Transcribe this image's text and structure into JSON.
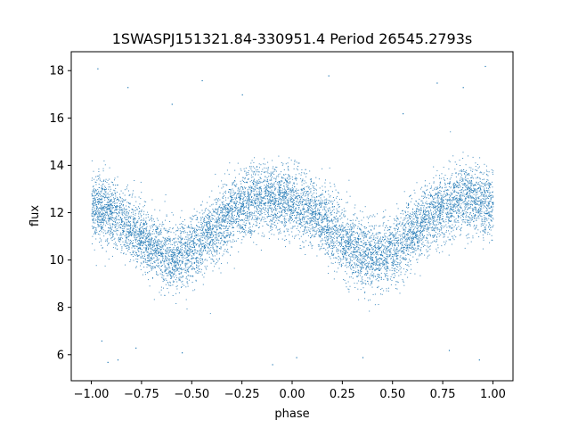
{
  "chart_data": {
    "type": "scatter",
    "title": "1SWASPJ151321.84-330951.4 Period 26545.2793s",
    "xlabel": "phase",
    "ylabel": "flux",
    "xlim": [
      -1.1,
      1.1
    ],
    "ylim": [
      4.9,
      18.8
    ],
    "xticks": [
      -1.0,
      -0.75,
      -0.5,
      -0.25,
      0.0,
      0.25,
      0.5,
      0.75,
      1.0
    ],
    "xtick_labels": [
      "−1.00",
      "−0.75",
      "−0.50",
      "−0.25",
      "0.00",
      "0.25",
      "0.50",
      "0.75",
      "1.00"
    ],
    "yticks": [
      6,
      8,
      10,
      12,
      14,
      16,
      18
    ],
    "ytick_labels": [
      "6",
      "8",
      "10",
      "12",
      "14",
      "16",
      "18"
    ],
    "grid": false,
    "legend": "none",
    "point_color": "#1f77b4",
    "series": [
      {
        "phase_profile_x": [
          -1.0,
          -0.9,
          -0.8,
          -0.7,
          -0.6,
          -0.5,
          -0.4,
          -0.3,
          -0.2,
          -0.1,
          0.0,
          0.1,
          0.2,
          0.3,
          0.4,
          0.5,
          0.6,
          0.7,
          0.8,
          0.9,
          1.0
        ],
        "phase_profile_mean_flux": [
          12.3,
          12.0,
          11.3,
          10.6,
          10.1,
          10.4,
          11.2,
          12.0,
          12.5,
          12.6,
          12.5,
          12.0,
          11.3,
          10.6,
          10.1,
          10.4,
          11.2,
          12.0,
          12.5,
          12.6,
          12.3
        ],
        "scatter_spread": 0.9,
        "sample_outliers": [
          [
            -0.92,
            5.7
          ],
          [
            -0.87,
            5.8
          ],
          [
            -0.95,
            6.6
          ],
          [
            -0.78,
            6.3
          ],
          [
            -0.55,
            6.1
          ],
          [
            -0.1,
            5.6
          ],
          [
            0.02,
            5.9
          ],
          [
            0.35,
            5.9
          ],
          [
            0.78,
            6.2
          ],
          [
            0.93,
            5.8
          ],
          [
            -0.97,
            18.1
          ],
          [
            -0.82,
            17.3
          ],
          [
            -0.45,
            17.6
          ],
          [
            0.18,
            17.8
          ],
          [
            0.72,
            17.5
          ],
          [
            0.85,
            17.3
          ],
          [
            0.96,
            18.2
          ],
          [
            -0.6,
            16.6
          ],
          [
            0.55,
            16.2
          ],
          [
            -0.25,
            17.0
          ]
        ]
      }
    ]
  }
}
